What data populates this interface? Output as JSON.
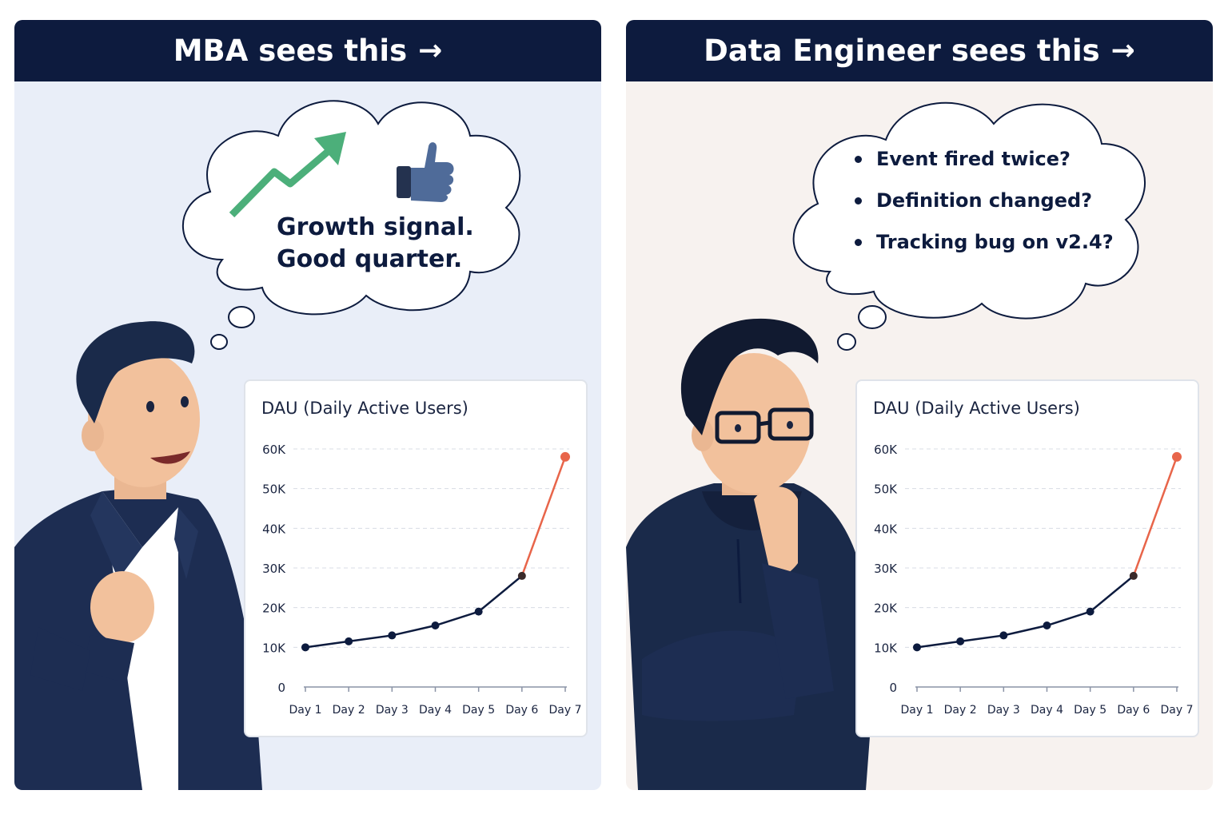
{
  "left_panel": {
    "header": {
      "label": "MBA sees this",
      "arrow_icon": "right-arrow-icon"
    },
    "thought": {
      "line1": "Growth signal.",
      "line2": "Good quarter.",
      "icons": [
        "trend-up-arrow-icon",
        "thumbs-up-icon"
      ]
    },
    "colors": {
      "background": "#e9eef8",
      "header": "#0d1b3e",
      "arrow": "#4caf7a",
      "thumb": "#4f6b99"
    }
  },
  "right_panel": {
    "header": {
      "label": "Data Engineer sees this",
      "arrow_icon": "right-arrow-icon"
    },
    "thought": {
      "items": [
        "Event fired twice?",
        "Definition changed?",
        "Tracking bug on v2.4?"
      ]
    },
    "colors": {
      "background": "#f7f2ef",
      "header": "#0d1b3e"
    }
  },
  "chart_data": [
    {
      "type": "line",
      "title": "DAU (Daily Active Users)",
      "categories": [
        "Day 1",
        "Day 2",
        "Day 3",
        "Day 4",
        "Day 5",
        "Day 6",
        "Day 7"
      ],
      "series": [
        {
          "values": [
            10000,
            11500,
            13000,
            15500,
            19000,
            28000,
            58000
          ]
        }
      ],
      "y_ticks": [
        "0",
        "10K",
        "20K",
        "30K",
        "40K",
        "50K",
        "60K"
      ],
      "ylim": [
        0,
        60000
      ],
      "grid": true,
      "colors": {
        "line": "#0d1b3e",
        "spike": "#e8654a"
      }
    },
    {
      "type": "line",
      "title": "DAU (Daily Active Users)",
      "categories": [
        "Day 1",
        "Day 2",
        "Day 3",
        "Day 4",
        "Day 5",
        "Day 6",
        "Day 7"
      ],
      "series": [
        {
          "values": [
            10000,
            11500,
            13000,
            15500,
            19000,
            28000,
            58000
          ]
        }
      ],
      "y_ticks": [
        "0",
        "10K",
        "20K",
        "30K",
        "40K",
        "50K",
        "60K"
      ],
      "ylim": [
        0,
        60000
      ],
      "grid": true,
      "colors": {
        "line": "#0d1b3e",
        "spike": "#e8654a"
      }
    }
  ]
}
